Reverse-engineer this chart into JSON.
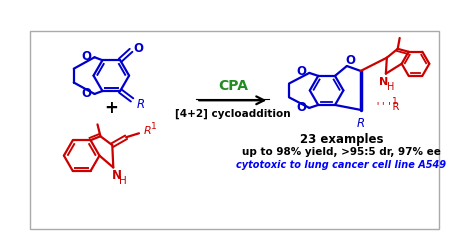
{
  "blue": "#0000cc",
  "red": "#cc0000",
  "green": "#228B22",
  "black": "#000000",
  "blue_text": "#0000ff",
  "text_23examples": "23 examples",
  "text_yield": "up to 98% yield, >95:5 dr, 97% ee",
  "text_cytotoxic": "cytotoxic to lung cancer cell line A549",
  "text_cpa": "CPA",
  "text_cyclo": "[4+2] cycloaddition",
  "figsize": [
    4.74,
    2.48
  ],
  "dpi": 100
}
